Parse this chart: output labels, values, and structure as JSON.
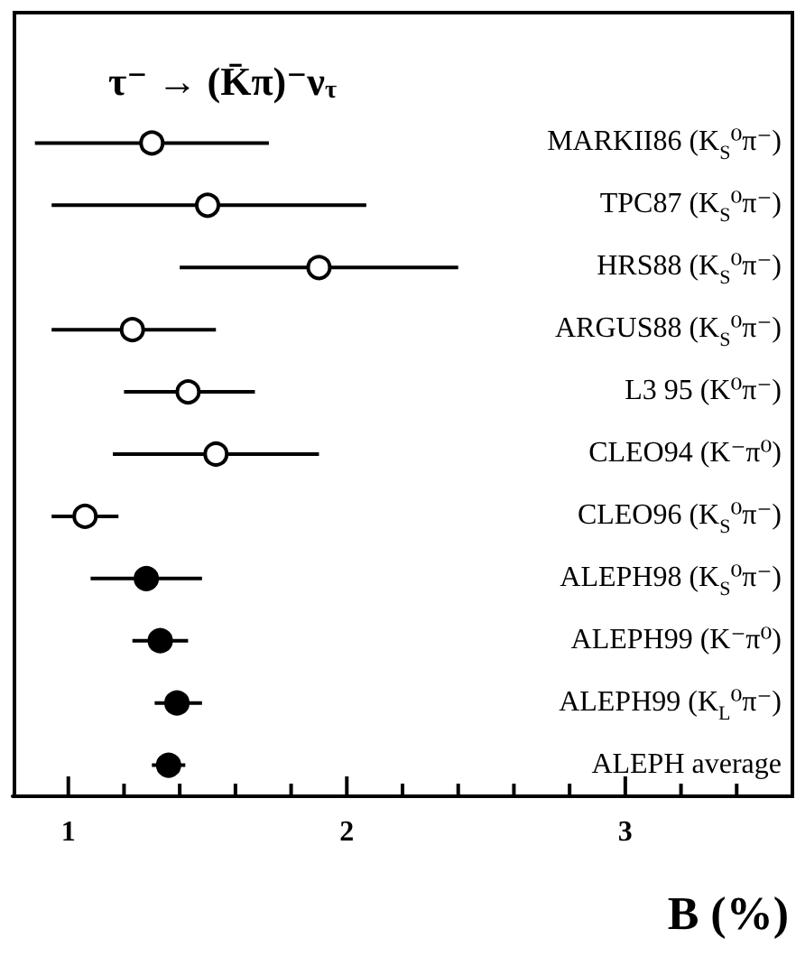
{
  "chart_data": {
    "type": "scatter",
    "orientation": "horizontal",
    "title": "τ⁻ → (K̄π)⁻ν$_{τ}$",
    "xlabel": "B (%)",
    "marker": "circle",
    "categories": [
      "MARKII86 (K$_{S}$⁰π⁻)",
      "TPC87 (K$_{S}$⁰π⁻)",
      "HRS88 (K$_{S}$⁰π⁻)",
      "ARGUS88 (K$_{S}$⁰π⁻)",
      "L3 95 (K⁰π⁻)",
      "CLEO94 (K⁻π⁰)",
      "CLEO96 (K$_{S}$⁰π⁻)",
      "ALEPH98 (K$_{S}$⁰π⁻)",
      "ALEPH99 (K⁻π⁰)",
      "ALEPH99 (K$_{L}$⁰π⁻)",
      "ALEPH average"
    ],
    "series": [
      {
        "color": "#ffffff",
        "values": [
          1.3,
          1.5,
          1.9,
          1.23,
          1.43,
          1.53,
          1.06,
          null,
          null,
          null,
          null
        ],
        "errors": [
          [
            0.88,
            1.72
          ],
          [
            0.94,
            2.07
          ],
          [
            1.4,
            2.4
          ],
          [
            0.94,
            1.53
          ],
          [
            1.2,
            1.67
          ],
          [
            1.16,
            1.9
          ],
          [
            0.94,
            1.18
          ],
          null,
          null,
          null,
          null
        ]
      },
      {
        "color": "#000000",
        "values": [
          null,
          null,
          null,
          null,
          null,
          null,
          null,
          1.28,
          1.33,
          1.39,
          1.36
        ],
        "errors": [
          null,
          null,
          null,
          null,
          null,
          null,
          null,
          [
            1.08,
            1.48
          ],
          [
            1.23,
            1.43
          ],
          [
            1.31,
            1.48
          ],
          [
            1.3,
            1.42
          ]
        ]
      }
    ],
    "xlim": [
      0.8,
      3.6
    ],
    "xticks": [
      1,
      {
        "value": 1.2,
        "label": null
      },
      {
        "value": 1.4,
        "label": null
      },
      {
        "value": 1.6,
        "label": null
      },
      {
        "value": 1.8,
        "label": null
      },
      2,
      {
        "value": 2.2,
        "label": null
      },
      {
        "value": 2.4,
        "label": null
      },
      {
        "value": 2.6,
        "label": null
      },
      {
        "value": 2.8,
        "label": null
      },
      3,
      {
        "value": 3.2,
        "label": null
      },
      {
        "value": 3.4,
        "label": null
      }
    ]
  }
}
